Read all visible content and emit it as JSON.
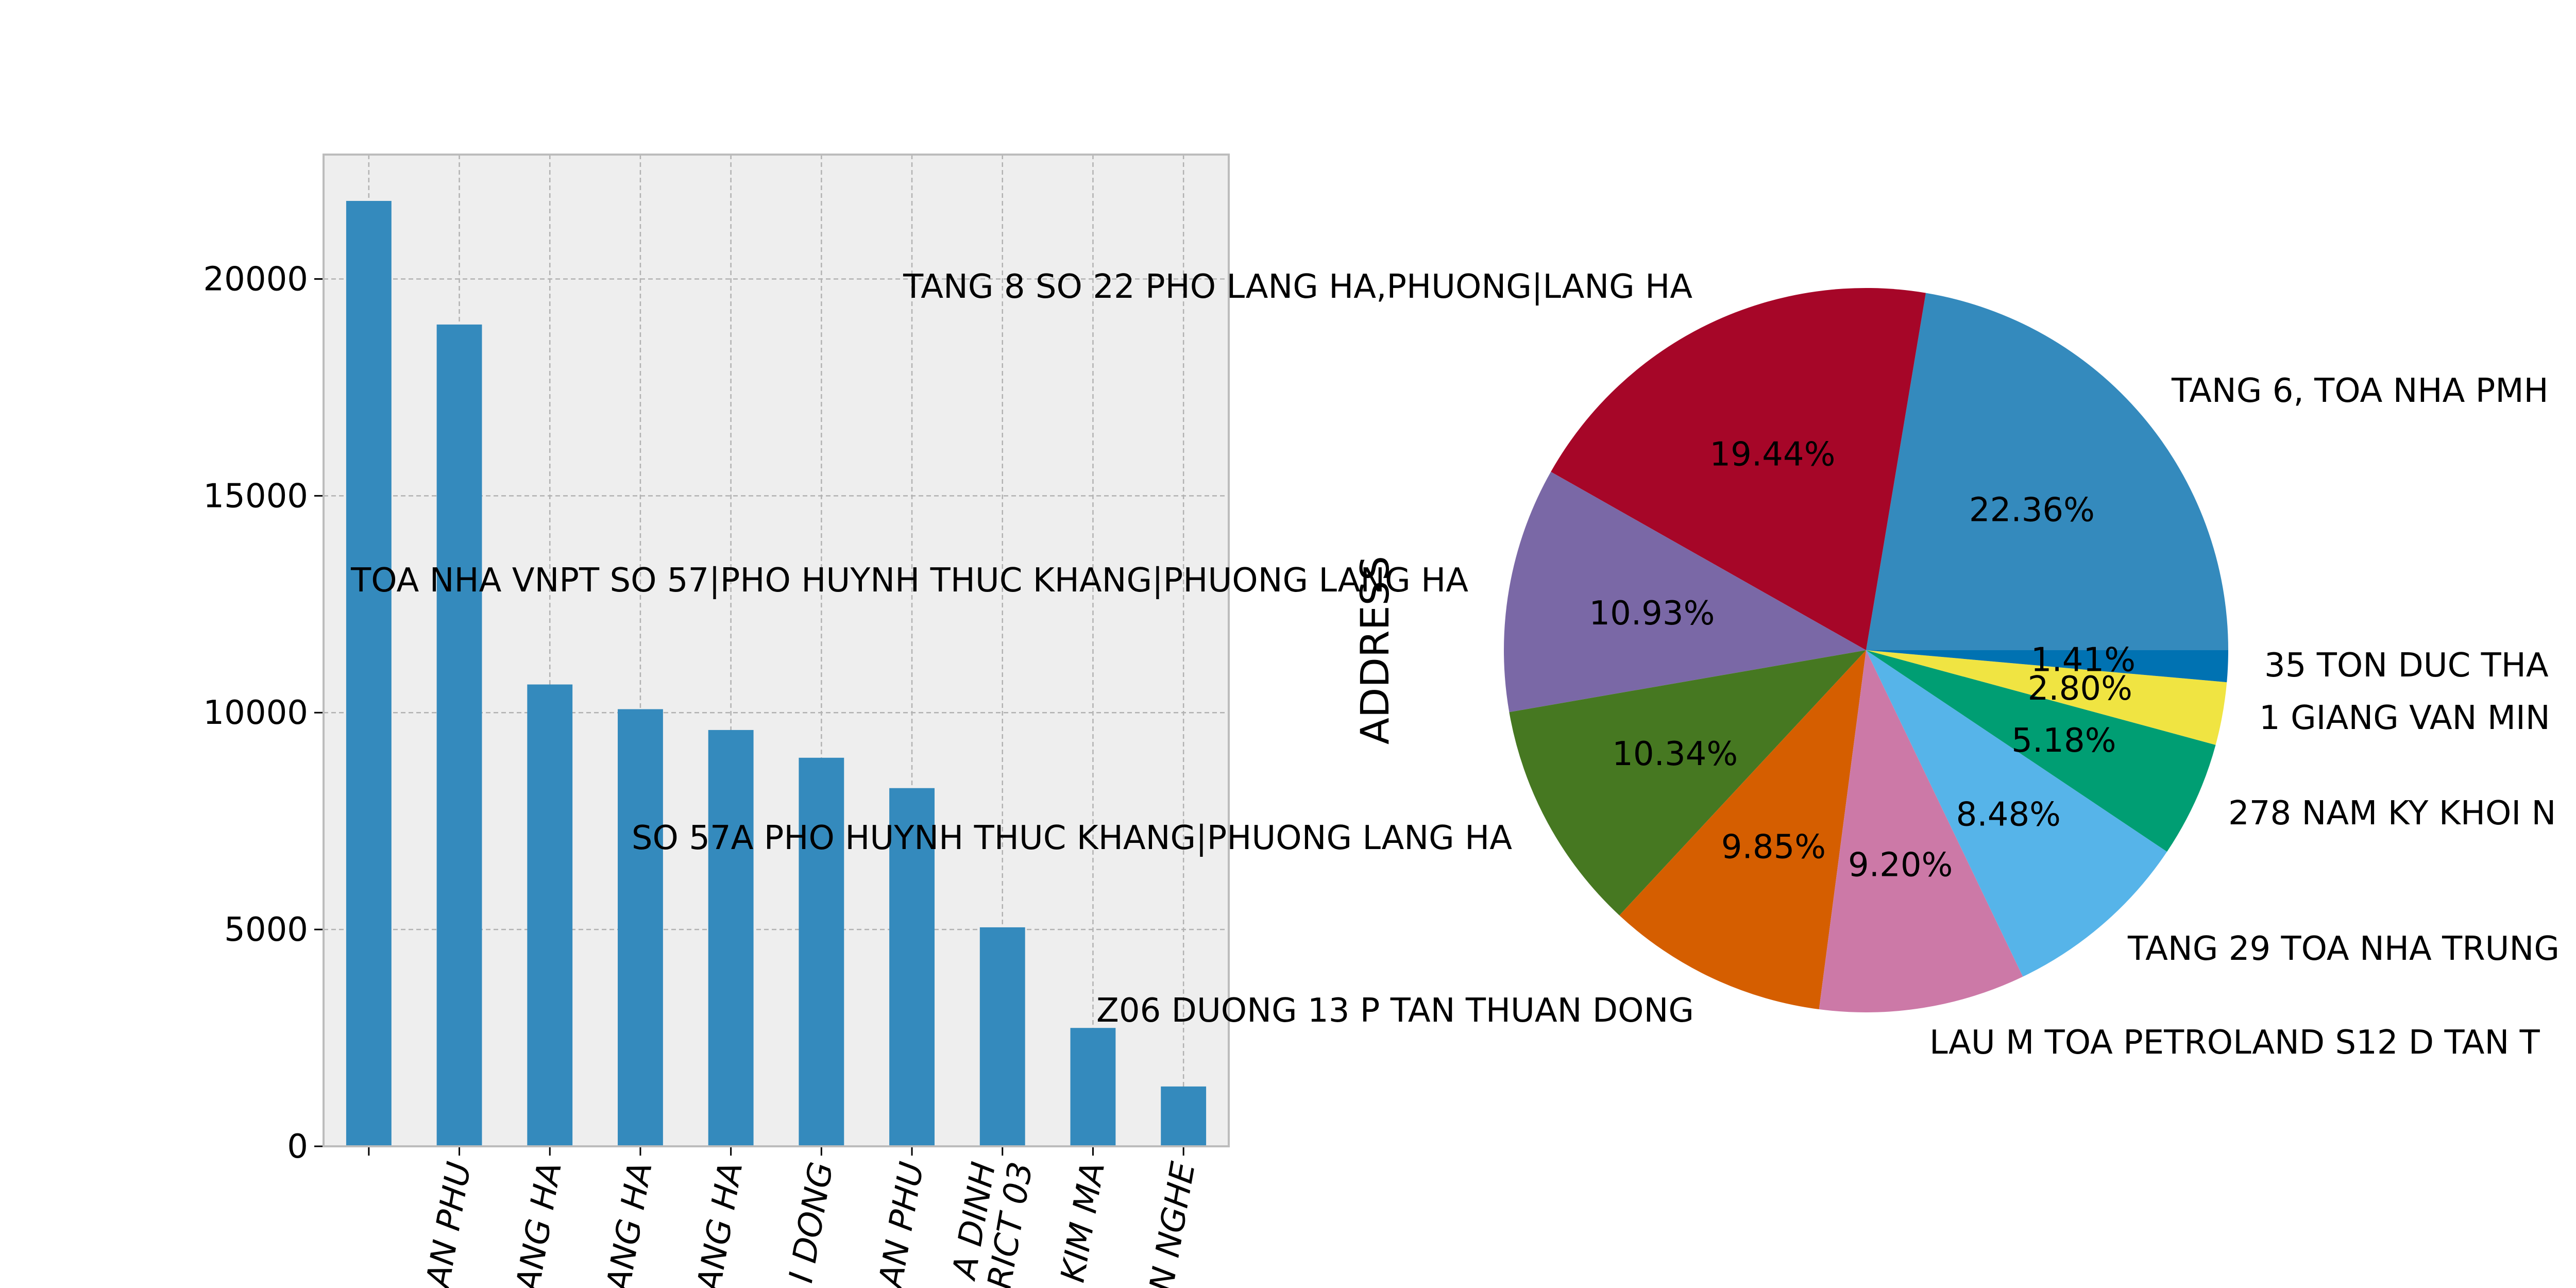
{
  "chart_data": [
    {
      "type": "bar",
      "title": "",
      "xlabel": "",
      "ylabel": "",
      "ylim": [
        0,
        22869
      ],
      "yticks": [
        0,
        5000,
        10000,
        15000,
        20000
      ],
      "grid": true,
      "categories": [
        "",
        "AN PHU",
        "ANG HA",
        "ANG HA",
        "ANG HA",
        "I DONG",
        "AN PHU",
        "A DINH\nRICT 03",
        "KIM MA",
        "N NGHE"
      ],
      "values": [
        21800,
        18950,
        10650,
        10080,
        9600,
        8960,
        8260,
        5050,
        2730,
        1380
      ],
      "colors": {
        "bar": "#348abd",
        "plot_bg": "#eeeeee",
        "grid": "#b2b2b2",
        "frame": "#bcbcbc"
      }
    },
    {
      "type": "pie",
      "ylabel": "ADDRESS",
      "slices": [
        {
          "label": "TANG 6, TOA NHA PMH",
          "pct_label": "22.36%",
          "value": 22.36,
          "color": "#348abd"
        },
        {
          "label": "TANG 8 SO 22 PHO LANG HA,PHUONG|LANG HA",
          "pct_label": "19.44%",
          "value": 19.44,
          "color": "#a60628"
        },
        {
          "label": "TOA NHA VNPT SO 57|PHO HUYNH THUC KHANG|PHUONG LANG HA",
          "pct_label": "10.93%",
          "value": 10.93,
          "color": "#7a68a6"
        },
        {
          "label": "SO 57A PHO HUYNH THUC KHANG|PHUONG LANG HA",
          "pct_label": "10.34%",
          "value": 10.34,
          "color": "#467821"
        },
        {
          "label": "Z06 DUONG 13 P TAN THUAN DONG",
          "pct_label": "9.85%",
          "value": 9.85,
          "color": "#d55e00"
        },
        {
          "label": "LAU M TOA PETROLAND S12 D TAN T",
          "pct_label": "9.20%",
          "value": 9.2,
          "color": "#cc79a7"
        },
        {
          "label": "TANG 29 TOA NHA TRUNG",
          "pct_label": "8.48%",
          "value": 8.48,
          "color": "#56b4e9"
        },
        {
          "label": "278 NAM KY KHOI N",
          "pct_label": "5.18%",
          "value": 5.18,
          "color": "#009e73"
        },
        {
          "label": "1 GIANG VAN MIN",
          "pct_label": "2.80%",
          "value": 2.8,
          "color": "#f0e442"
        },
        {
          "label": "35 TON DUC THA",
          "pct_label": "1.41%",
          "value": 1.41,
          "color": "#0072b2"
        }
      ]
    }
  ]
}
